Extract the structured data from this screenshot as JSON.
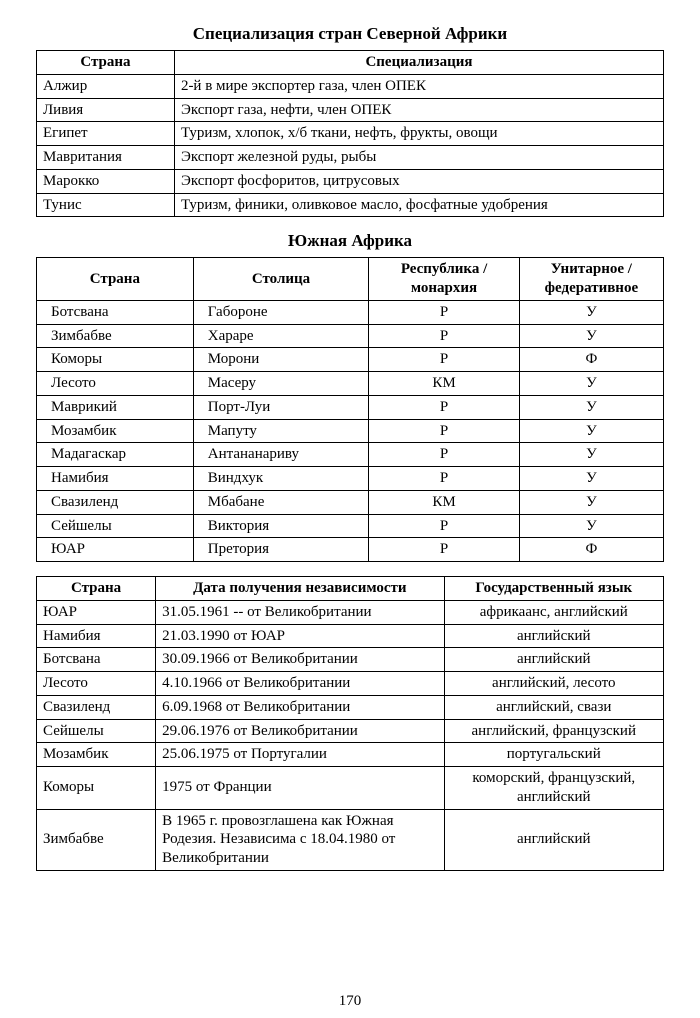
{
  "page_number": "170",
  "table1": {
    "title": "Специализация стран Северной Африки",
    "columns": [
      "Страна",
      "Специализация"
    ],
    "rows": [
      [
        "Алжир",
        "2-й в мире экспортер газа, член ОПЕК"
      ],
      [
        "Ливия",
        "Экспорт газа, нефти, член ОПЕК"
      ],
      [
        "Египет",
        "Туризм, хлопок, х/б ткани, нефть, фрукты, овощи"
      ],
      [
        "Мавритания",
        "Экспорт железной руды, рыбы"
      ],
      [
        "Марокко",
        "Экспорт фосфоритов, цитрусовых"
      ],
      [
        "Тунис",
        "Туризм, финики, оливковое масло, фосфатные удобрения"
      ]
    ]
  },
  "table2": {
    "title": "Южная Африка",
    "columns": [
      "Страна",
      "Столица",
      "Республика / монархия",
      "Унитарное / федеративное"
    ],
    "rows": [
      [
        "Ботсвана",
        "Габороне",
        "Р",
        "У"
      ],
      [
        "Зимбабве",
        "Хараре",
        "Р",
        "У"
      ],
      [
        "Коморы",
        "Морони",
        "Р",
        "Ф"
      ],
      [
        "Лесото",
        "Масеру",
        "КМ",
        "У"
      ],
      [
        "Маврикий",
        "Порт-Луи",
        "Р",
        "У"
      ],
      [
        "Мозамбик",
        "Мапуту",
        "Р",
        "У"
      ],
      [
        "Мадагаскар",
        "Антананариву",
        "Р",
        "У"
      ],
      [
        "Намибия",
        "Виндхук",
        "Р",
        "У"
      ],
      [
        "Свазиленд",
        "Мбабане",
        "КМ",
        "У"
      ],
      [
        "Сейшелы",
        "Виктория",
        "Р",
        "У"
      ],
      [
        "ЮАР",
        "Претория",
        "Р",
        "Ф"
      ]
    ]
  },
  "table3": {
    "columns": [
      "Страна",
      "Дата получения независимости",
      "Государственный язык"
    ],
    "rows": [
      [
        "ЮАР",
        "31.05.1961 -- от Великобритании",
        "африкаанс, английский"
      ],
      [
        "Намибия",
        "21.03.1990 от ЮАР",
        "английский"
      ],
      [
        "Ботсвана",
        "30.09.1966 от Великобритании",
        "английский"
      ],
      [
        "Лесото",
        "4.10.1966 от Великобритании",
        "английский, лесото"
      ],
      [
        "Свазиленд",
        "6.09.1968 от Великобритании",
        "английский, свази"
      ],
      [
        "Сейшелы",
        "29.06.1976 от Великобритании",
        "английский, французский"
      ],
      [
        "Мозамбик",
        "25.06.1975 от Португалии",
        "португальский"
      ],
      [
        "Коморы",
        "1975 от Франции",
        "коморский, французский, английский"
      ],
      [
        "Зимбабве",
        "В 1965 г. провозглашена как Южная Родезия. Независима с 18.04.1980 от Великобритании",
        "английский"
      ]
    ]
  },
  "style": {
    "font_family": "Times New Roman",
    "title_fontsize_pt": 13,
    "cell_fontsize_pt": 11,
    "border_color": "#000000",
    "background_color": "#ffffff",
    "text_color": "#000000"
  }
}
